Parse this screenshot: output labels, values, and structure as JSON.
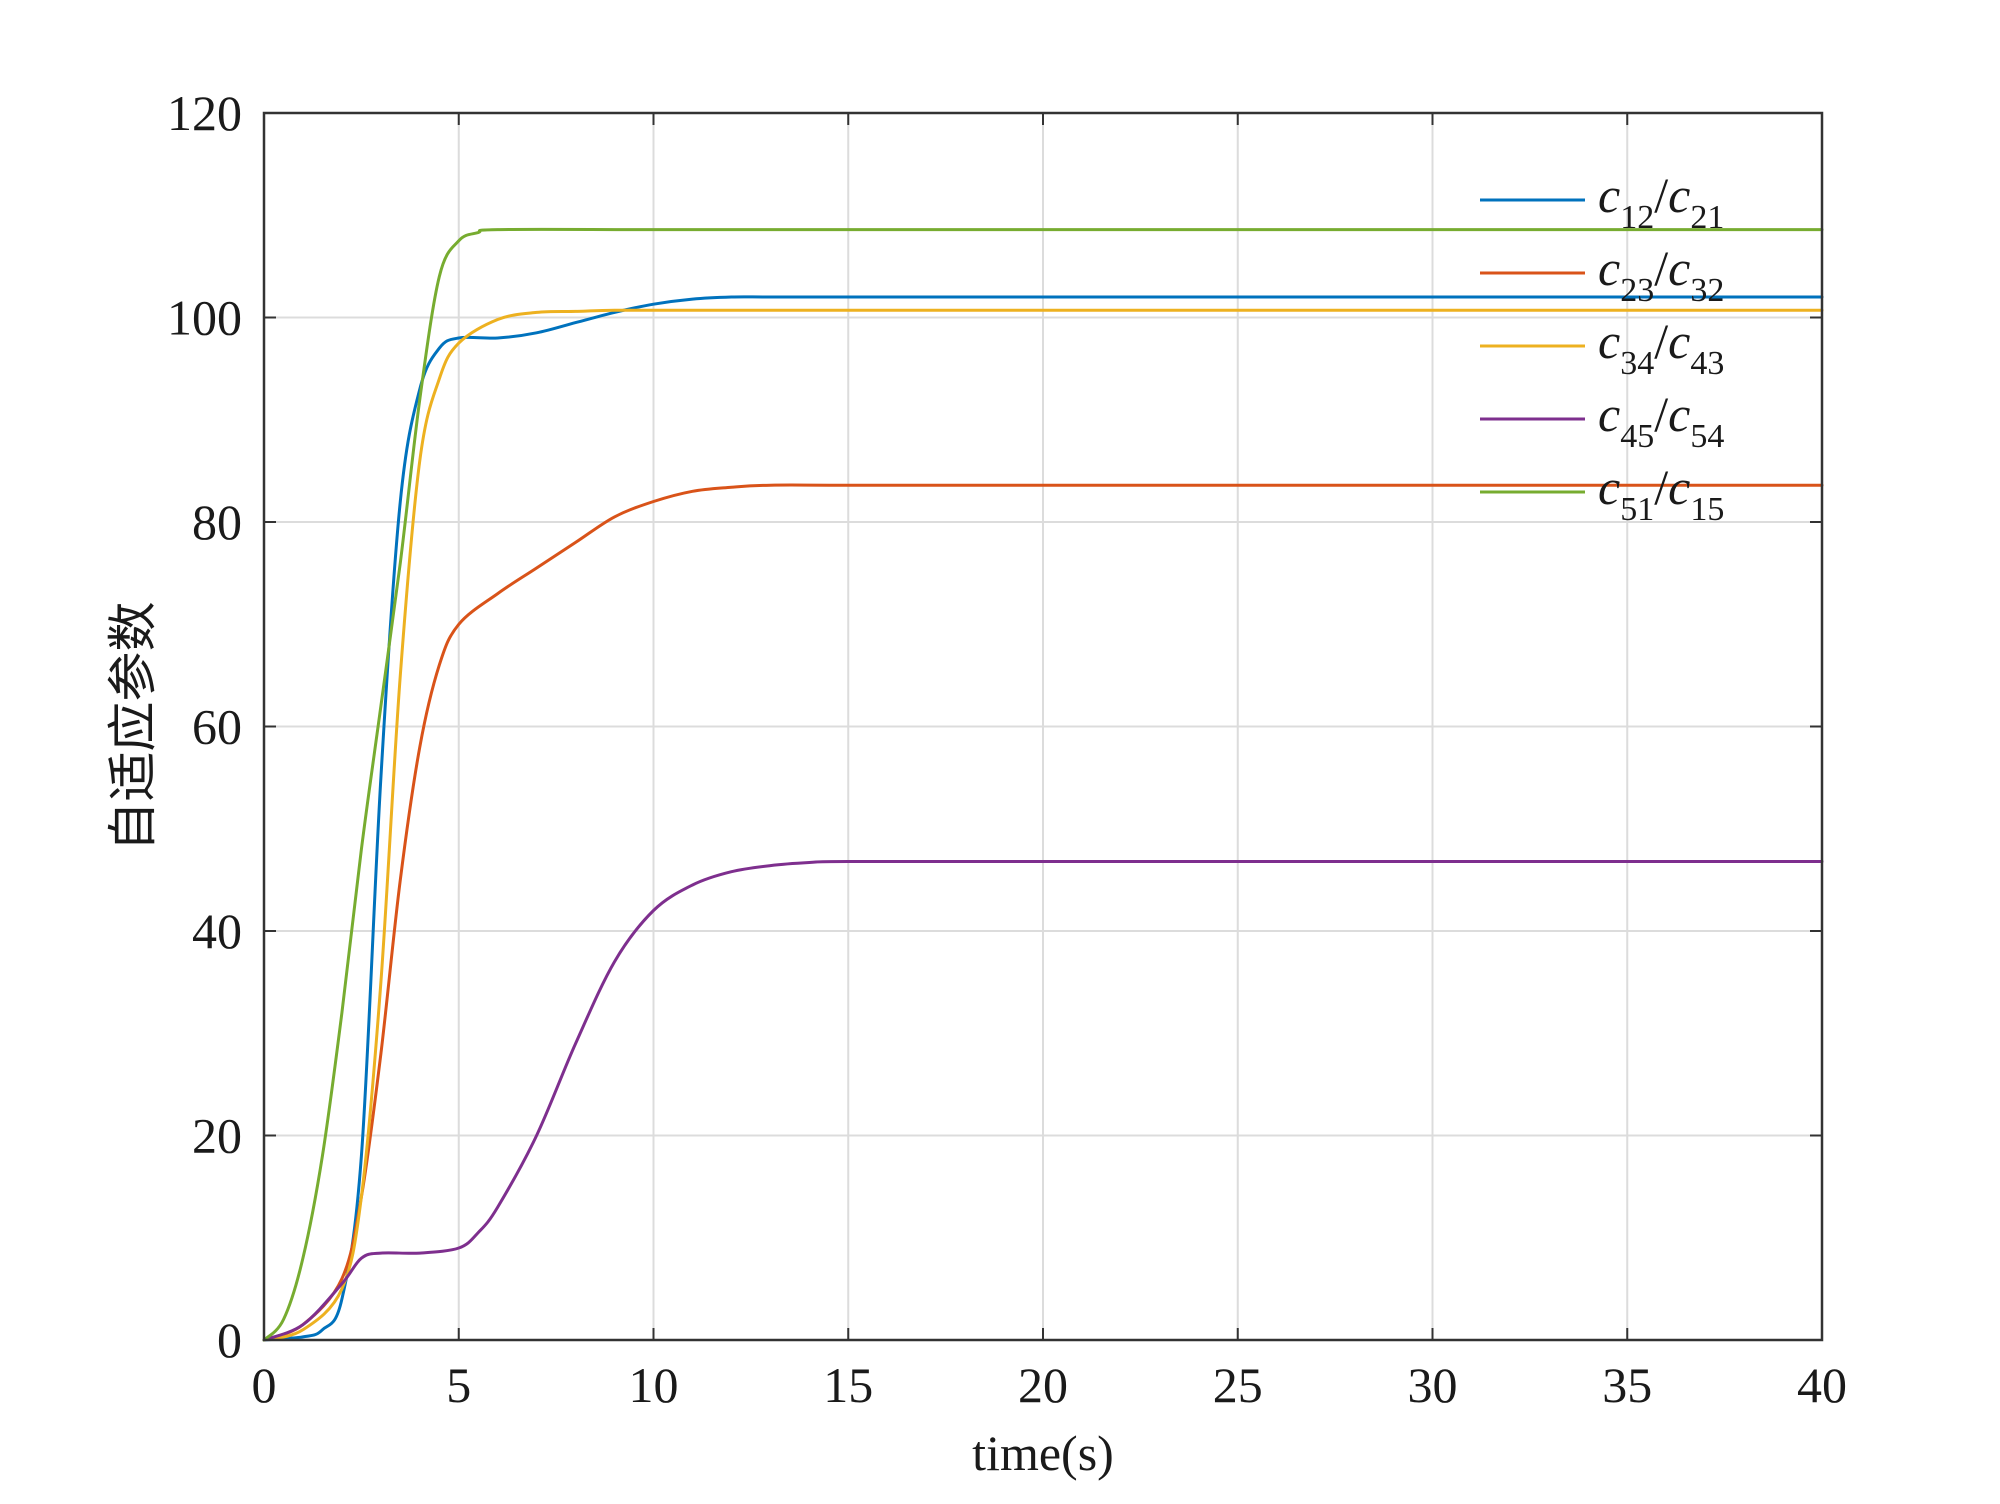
{
  "chart_data": {
    "type": "line",
    "xlabel": "time(s)",
    "ylabel": "自适应参数",
    "xlim": [
      0,
      40
    ],
    "ylim": [
      0,
      120
    ],
    "xticks": [
      "0",
      "5",
      "10",
      "15",
      "20",
      "25",
      "30",
      "35",
      "40"
    ],
    "yticks": [
      "0",
      "20",
      "40",
      "60",
      "80",
      "100",
      "120"
    ],
    "grid": true,
    "legend_position": "top-right",
    "series": [
      {
        "name": "c12/c21",
        "legend": {
          "a": "c",
          "a_sub": "12",
          "b": "c",
          "b_sub": "21"
        },
        "color": "#0072BD",
        "points": [
          [
            0,
            0
          ],
          [
            1,
            0.3
          ],
          [
            1.5,
            1
          ],
          [
            2,
            4
          ],
          [
            2.5,
            18
          ],
          [
            3,
            55
          ],
          [
            3.5,
            82
          ],
          [
            4,
            93
          ],
          [
            4.5,
            97
          ],
          [
            5,
            98
          ],
          [
            6,
            98
          ],
          [
            7,
            98.5
          ],
          [
            8,
            99.5
          ],
          [
            9,
            100.5
          ],
          [
            10,
            101.3
          ],
          [
            11,
            101.8
          ],
          [
            12,
            102
          ],
          [
            13,
            102
          ],
          [
            15,
            102
          ],
          [
            20,
            102
          ],
          [
            25,
            102
          ],
          [
            30,
            102
          ],
          [
            35,
            102
          ],
          [
            40,
            102
          ]
        ]
      },
      {
        "name": "c23/c32",
        "legend": {
          "a": "c",
          "a_sub": "23",
          "b": "c",
          "b_sub": "32"
        },
        "color": "#D95319",
        "points": [
          [
            0,
            0
          ],
          [
            1,
            1.5
          ],
          [
            2,
            6
          ],
          [
            2.5,
            14
          ],
          [
            3,
            28
          ],
          [
            3.5,
            45
          ],
          [
            4,
            58
          ],
          [
            4.5,
            66
          ],
          [
            5,
            70
          ],
          [
            6,
            73
          ],
          [
            7,
            75.5
          ],
          [
            8,
            78
          ],
          [
            9,
            80.5
          ],
          [
            10,
            82
          ],
          [
            11,
            83
          ],
          [
            12,
            83.4
          ],
          [
            13,
            83.6
          ],
          [
            15,
            83.6
          ],
          [
            20,
            83.6
          ],
          [
            25,
            83.6
          ],
          [
            30,
            83.6
          ],
          [
            35,
            83.6
          ],
          [
            40,
            83.6
          ]
        ]
      },
      {
        "name": "c34/c43",
        "legend": {
          "a": "c",
          "a_sub": "34",
          "b": "c",
          "b_sub": "43"
        },
        "color": "#EDB120",
        "points": [
          [
            0,
            0
          ],
          [
            1,
            1
          ],
          [
            2,
            5
          ],
          [
            2.5,
            14
          ],
          [
            3,
            35
          ],
          [
            3.5,
            65
          ],
          [
            4,
            86
          ],
          [
            4.5,
            94
          ],
          [
            5,
            97.5
          ],
          [
            6,
            99.8
          ],
          [
            7,
            100.5
          ],
          [
            8,
            100.6
          ],
          [
            9,
            100.7
          ],
          [
            10,
            100.7
          ],
          [
            15,
            100.7
          ],
          [
            20,
            100.7
          ],
          [
            25,
            100.7
          ],
          [
            30,
            100.7
          ],
          [
            35,
            100.7
          ],
          [
            40,
            100.7
          ]
        ]
      },
      {
        "name": "c45/c54",
        "legend": {
          "a": "c",
          "a_sub": "45",
          "b": "c",
          "b_sub": "54"
        },
        "color": "#7E2F8E",
        "points": [
          [
            0,
            0
          ],
          [
            1,
            1.5
          ],
          [
            2,
            5.5
          ],
          [
            2.5,
            8
          ],
          [
            3,
            8.5
          ],
          [
            4,
            8.5
          ],
          [
            5,
            9
          ],
          [
            5.5,
            10.5
          ],
          [
            6,
            13
          ],
          [
            7,
            20
          ],
          [
            8,
            29
          ],
          [
            9,
            37
          ],
          [
            10,
            42
          ],
          [
            11,
            44.5
          ],
          [
            12,
            45.8
          ],
          [
            13,
            46.4
          ],
          [
            14,
            46.7
          ],
          [
            15,
            46.8
          ],
          [
            20,
            46.8
          ],
          [
            25,
            46.8
          ],
          [
            30,
            46.8
          ],
          [
            35,
            46.8
          ],
          [
            40,
            46.8
          ]
        ]
      },
      {
        "name": "c51/c15",
        "legend": {
          "a": "c",
          "a_sub": "51",
          "b": "c",
          "b_sub": "15"
        },
        "color": "#77AC30",
        "points": [
          [
            0,
            0
          ],
          [
            0.5,
            2
          ],
          [
            1,
            8
          ],
          [
            1.5,
            18
          ],
          [
            2,
            32
          ],
          [
            2.5,
            48
          ],
          [
            3,
            62
          ],
          [
            3.5,
            76
          ],
          [
            4,
            92
          ],
          [
            4.5,
            104
          ],
          [
            5,
            107.5
          ],
          [
            5.5,
            108.3
          ],
          [
            6,
            108.6
          ],
          [
            10,
            108.6
          ],
          [
            15,
            108.6
          ],
          [
            20,
            108.6
          ],
          [
            25,
            108.6
          ],
          [
            30,
            108.6
          ],
          [
            35,
            108.6
          ],
          [
            40,
            108.6
          ]
        ]
      }
    ]
  }
}
